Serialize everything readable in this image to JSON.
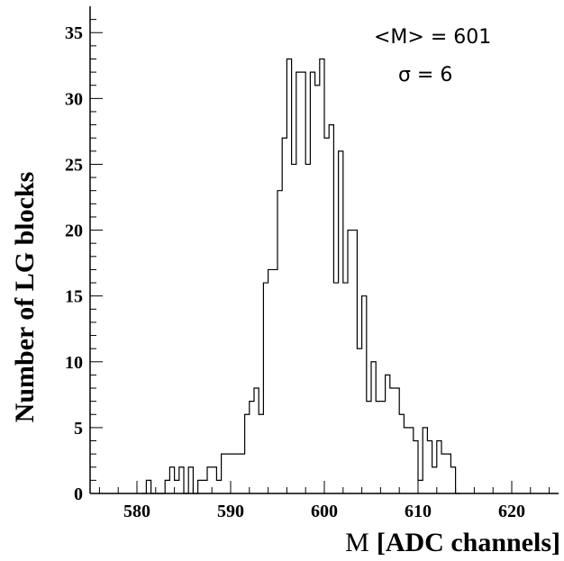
{
  "chart_data": {
    "type": "histogram",
    "title": "",
    "xlabel_plain": "M",
    "xlabel_bold": "[ADC channels]",
    "ylabel": "Number of LG blocks",
    "xlim": [
      575,
      625
    ],
    "ylim": [
      0,
      37
    ],
    "xticks": [
      580,
      590,
      600,
      610,
      620
    ],
    "yticks": [
      0,
      5,
      10,
      15,
      20,
      25,
      30,
      35
    ],
    "grid": false,
    "annotations": [
      "<M> = 601",
      "σ = 6"
    ],
    "bin_width": 0.5,
    "bin_start": 580.5,
    "counts": [
      0,
      1,
      0,
      0,
      0,
      1,
      2,
      1,
      2,
      0,
      2,
      0,
      1,
      1,
      2,
      2,
      1,
      3,
      3,
      3,
      3,
      3,
      6,
      7,
      8,
      6,
      16,
      17,
      17,
      23,
      27,
      33,
      25,
      32,
      32,
      25,
      32,
      31,
      33,
      27,
      28,
      16,
      26,
      16,
      20,
      20,
      11,
      15,
      7,
      10,
      7,
      7,
      9,
      8,
      8,
      6,
      5,
      5,
      4,
      1,
      5,
      4,
      2,
      4,
      3,
      3,
      2,
      0
    ],
    "series": [
      {
        "name": "",
        "color": "#000000"
      }
    ]
  }
}
